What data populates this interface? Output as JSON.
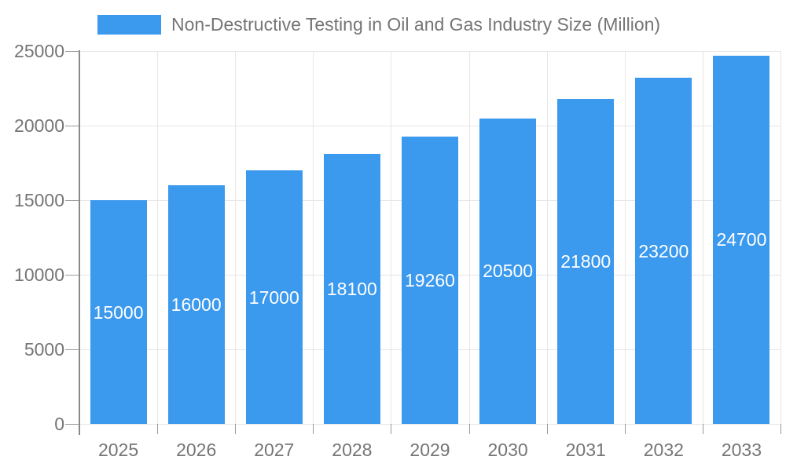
{
  "chart_data": {
    "type": "bar",
    "title": "Non-Destructive Testing in Oil and Gas Industry Size (Million)",
    "categories": [
      "2025",
      "2026",
      "2027",
      "2028",
      "2029",
      "2030",
      "2031",
      "2032",
      "2033"
    ],
    "values": [
      15000,
      16000,
      17000,
      18100,
      19260,
      20500,
      21800,
      23200,
      24700
    ],
    "bar_labels": [
      "15000",
      "16000",
      "17000",
      "18100",
      "19260",
      "20500",
      "21800",
      "23200",
      "24700"
    ],
    "xlabel": "",
    "ylabel": "",
    "ylim": [
      0,
      25000
    ],
    "y_ticks": [
      0,
      5000,
      10000,
      15000,
      20000,
      25000
    ],
    "y_tick_labels": [
      "0",
      "5000",
      "10000",
      "15000",
      "20000",
      "25000"
    ],
    "grid": true,
    "legend_position": "top",
    "bar_color": "#3B99EE",
    "value_label_color": "#FFFFFF",
    "axis_text_color": "#757575",
    "gridline_color": "#E6E6E6",
    "tick_color": "#9A9A9A",
    "axis_line_color": "#8A8A8A",
    "background_color": "#FFFFFF"
  },
  "legend": {
    "items": [
      {
        "label": "Non-Destructive Testing in Oil and Gas Industry Size (Million)",
        "color": "#3B99EE"
      }
    ]
  }
}
